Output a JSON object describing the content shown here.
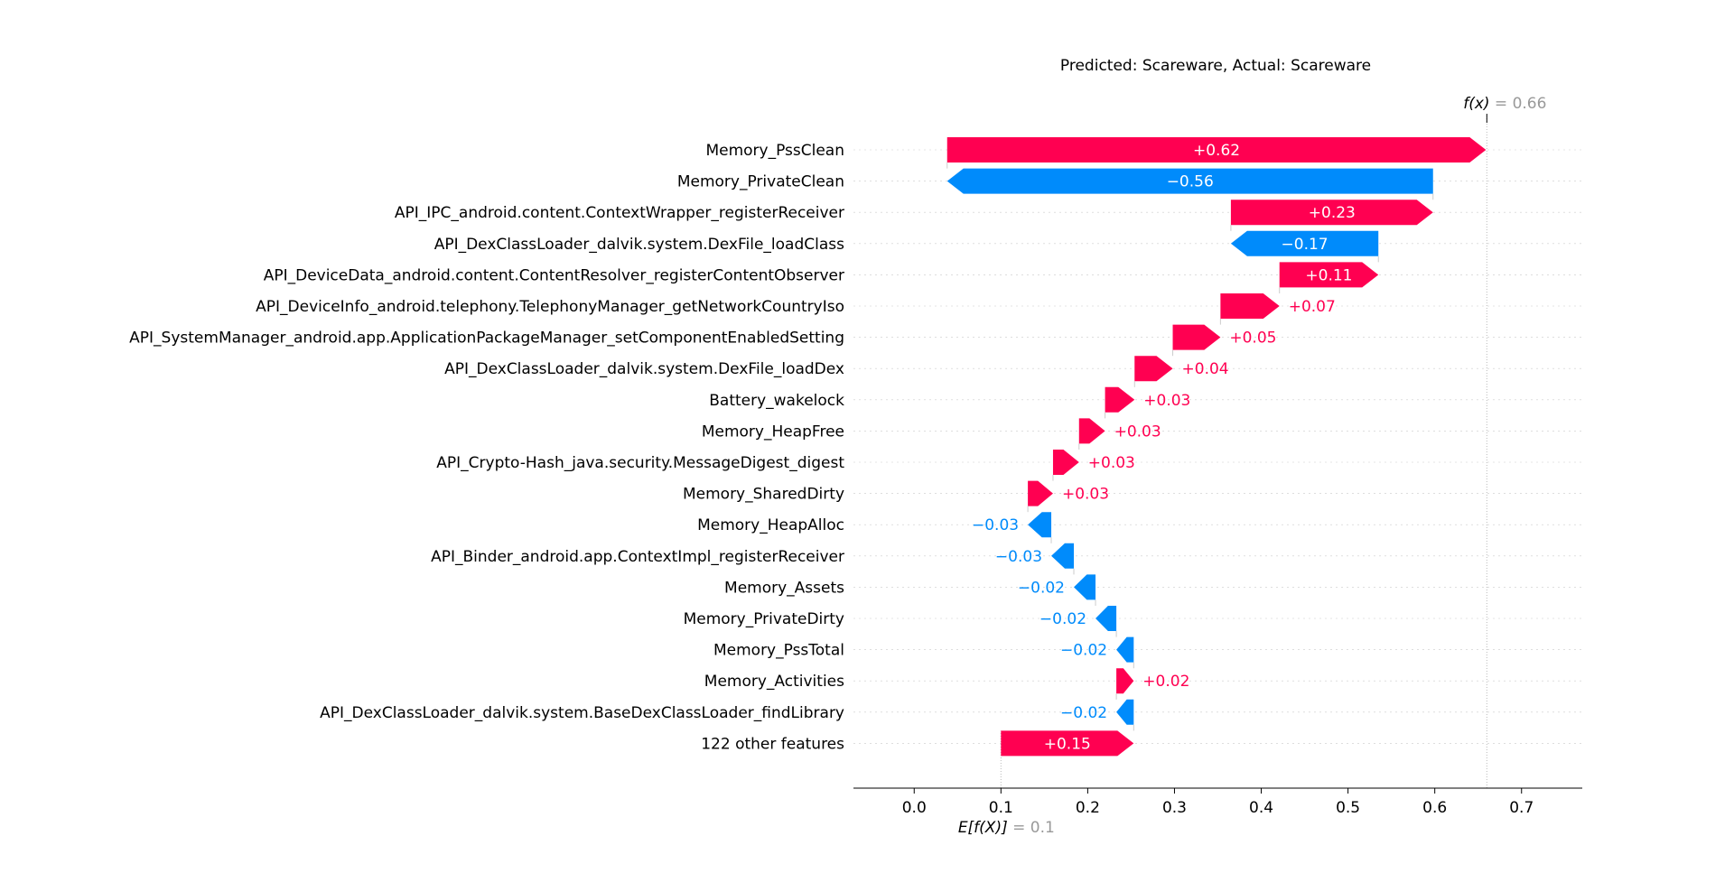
{
  "chart_data": {
    "type": "waterfall",
    "title": "Predicted: Scareware, Actual: Scareware",
    "base_value": 0.1,
    "base_value_display": "0.1",
    "base_label": "E[f(X)]",
    "output_value": 0.66,
    "output_value_display": "0.66",
    "output_label": "f(x)",
    "xlim": [
      -0.07,
      0.77
    ],
    "xticks": [
      0.0,
      0.1,
      0.2,
      0.3,
      0.4,
      0.5,
      0.6,
      0.7
    ],
    "xtick_labels": [
      "0.0",
      "0.1",
      "0.2",
      "0.3",
      "0.4",
      "0.5",
      "0.6",
      "0.7"
    ],
    "colors": {
      "positive": "#ff0051",
      "negative": "#008bfb",
      "muted": "#999999",
      "text": "#000000"
    },
    "features": [
      {
        "name": "Memory_PssClean",
        "value": 0.621,
        "label": "+0.62"
      },
      {
        "name": "Memory_PrivateClean",
        "value": -0.56,
        "label": "−0.56"
      },
      {
        "name": "API_IPC_android.content.ContextWrapper_registerReceiver",
        "value": 0.233,
        "label": "+0.23"
      },
      {
        "name": "API_DexClassLoader_dalvik.system.DexFile_loadClass",
        "value": -0.17,
        "label": "−0.17"
      },
      {
        "name": "API_DeviceData_android.content.ContentResolver_registerContentObserver",
        "value": 0.114,
        "label": "+0.11"
      },
      {
        "name": "API_DeviceInfo_android.telephony.TelephonyManager_getNetworkCountryIso",
        "value": 0.068,
        "label": "+0.07"
      },
      {
        "name": "API_SystemManager_android.app.ApplicationPackageManager_setComponentEnabledSetting",
        "value": 0.055,
        "label": "+0.05"
      },
      {
        "name": "API_DexClassLoader_dalvik.system.DexFile_loadDex",
        "value": 0.044,
        "label": "+0.04"
      },
      {
        "name": "Battery_wakelock",
        "value": 0.034,
        "label": "+0.03"
      },
      {
        "name": "Memory_HeapFree",
        "value": 0.03,
        "label": "+0.03"
      },
      {
        "name": "API_Crypto-Hash_java.security.MessageDigest_digest",
        "value": 0.03,
        "label": "+0.03"
      },
      {
        "name": "Memory_SharedDirty",
        "value": 0.029,
        "label": "+0.03"
      },
      {
        "name": "Memory_HeapAlloc",
        "value": -0.027,
        "label": "−0.03"
      },
      {
        "name": "API_Binder_android.app.ContextImpl_registerReceiver",
        "value": -0.026,
        "label": "−0.03"
      },
      {
        "name": "Memory_Assets",
        "value": -0.025,
        "label": "−0.02"
      },
      {
        "name": "Memory_PrivateDirty",
        "value": -0.024,
        "label": "−0.02"
      },
      {
        "name": "Memory_PssTotal",
        "value": -0.02,
        "label": "−0.02"
      },
      {
        "name": "Memory_Activities",
        "value": 0.02,
        "label": "+0.02"
      },
      {
        "name": "API_DexClassLoader_dalvik.system.BaseDexClassLoader_findLibrary",
        "value": -0.02,
        "label": "−0.02"
      },
      {
        "name": "122 other features",
        "value": 0.153,
        "label": "+0.15"
      }
    ]
  }
}
